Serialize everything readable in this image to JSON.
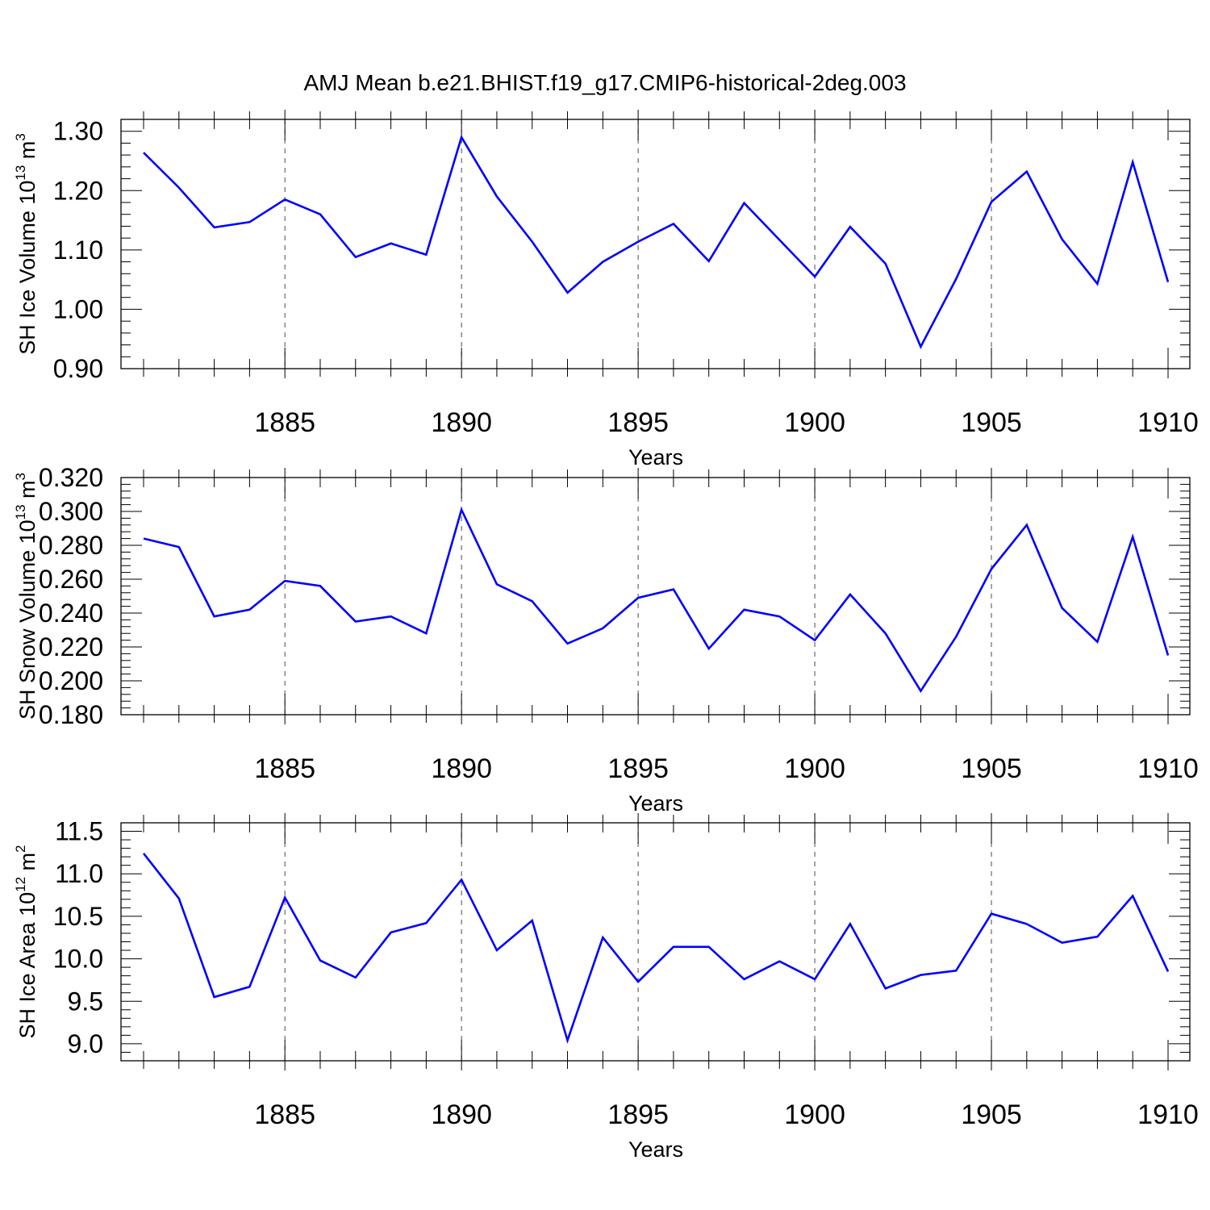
{
  "title": "AMJ Mean b.e21.BHIST.f19_g17.CMIP6-historical-2deg.003",
  "colors": {
    "line": "#0000ff",
    "axis": "#000000",
    "grid": "#000000"
  },
  "chart_data": [
    {
      "type": "line",
      "ylabel": "SH Ice Volume 10",
      "ylabel_exp": "13",
      "ylabel_unit": " m",
      "ylabel_unit_exp": "3",
      "xlabel": "Years",
      "xlim": [
        1881,
        1910
      ],
      "ylim": [
        0.9,
        1.32
      ],
      "yticks": [
        0.9,
        1.0,
        1.1,
        1.2,
        1.3
      ],
      "ytick_labels": [
        "0.90",
        "1.00",
        "1.10",
        "1.20",
        "1.30"
      ],
      "xticks": [
        1885,
        1890,
        1895,
        1900,
        1905,
        1910
      ],
      "xtick_labels": [
        "1885",
        "1890",
        "1895",
        "1900",
        "1905",
        "1910"
      ],
      "grid": "vertical dashed at major x ticks",
      "x": [
        1881,
        1882,
        1883,
        1884,
        1885,
        1886,
        1887,
        1888,
        1889,
        1890,
        1891,
        1892,
        1893,
        1894,
        1895,
        1896,
        1897,
        1898,
        1899,
        1900,
        1901,
        1902,
        1903,
        1904,
        1905,
        1906,
        1907,
        1908,
        1909,
        1910
      ],
      "series": [
        {
          "values": [
            1.264,
            1.205,
            1.138,
            1.147,
            1.185,
            1.16,
            1.088,
            1.111,
            1.092,
            1.29,
            1.19,
            1.114,
            1.028,
            1.08,
            1.114,
            1.144,
            1.081,
            1.179,
            1.117,
            1.055,
            1.139,
            1.077,
            0.937,
            1.051,
            1.181,
            1.232,
            1.118,
            1.043,
            1.248,
            1.046
          ]
        }
      ]
    },
    {
      "type": "line",
      "ylabel": "SH Snow Volume 10",
      "ylabel_exp": "13",
      "ylabel_unit": " m",
      "ylabel_unit_exp": "3",
      "xlabel": "Years",
      "xlim": [
        1881,
        1910
      ],
      "ylim": [
        0.18,
        0.32
      ],
      "yticks": [
        0.18,
        0.2,
        0.22,
        0.24,
        0.26,
        0.28,
        0.3,
        0.32
      ],
      "ytick_labels": [
        "0.180",
        "0.200",
        "0.220",
        "0.240",
        "0.260",
        "0.280",
        "0.300",
        "0.320"
      ],
      "xticks": [
        1885,
        1890,
        1895,
        1900,
        1905,
        1910
      ],
      "xtick_labels": [
        "1885",
        "1890",
        "1895",
        "1900",
        "1905",
        "1910"
      ],
      "grid": "vertical dashed at major x ticks",
      "x": [
        1881,
        1882,
        1883,
        1884,
        1885,
        1886,
        1887,
        1888,
        1889,
        1890,
        1891,
        1892,
        1893,
        1894,
        1895,
        1896,
        1897,
        1898,
        1899,
        1900,
        1901,
        1902,
        1903,
        1904,
        1905,
        1906,
        1907,
        1908,
        1909,
        1910
      ],
      "series": [
        {
          "values": [
            0.284,
            0.279,
            0.238,
            0.242,
            0.259,
            0.256,
            0.235,
            0.238,
            0.228,
            0.301,
            0.257,
            0.247,
            0.222,
            0.231,
            0.249,
            0.254,
            0.219,
            0.242,
            0.238,
            0.224,
            0.251,
            0.228,
            0.194,
            0.226,
            0.266,
            0.292,
            0.243,
            0.223,
            0.285,
            0.215
          ]
        }
      ]
    },
    {
      "type": "line",
      "ylabel": "SH Ice Area 10",
      "ylabel_exp": "12",
      "ylabel_unit": " m",
      "ylabel_unit_exp": "2",
      "xlabel": "Years",
      "xlim": [
        1881,
        1910
      ],
      "ylim": [
        8.8,
        11.6
      ],
      "yticks": [
        9.0,
        9.5,
        10.0,
        10.5,
        11.0,
        11.5
      ],
      "ytick_labels": [
        "9.0",
        "9.5",
        "10.0",
        "10.5",
        "11.0",
        "11.5"
      ],
      "xticks": [
        1885,
        1890,
        1895,
        1900,
        1905,
        1910
      ],
      "xtick_labels": [
        "1885",
        "1890",
        "1895",
        "1900",
        "1905",
        "1910"
      ],
      "grid": "vertical dashed at major x ticks",
      "x": [
        1881,
        1882,
        1883,
        1884,
        1885,
        1886,
        1887,
        1888,
        1889,
        1890,
        1891,
        1892,
        1893,
        1894,
        1895,
        1896,
        1897,
        1898,
        1899,
        1900,
        1901,
        1902,
        1903,
        1904,
        1905,
        1906,
        1907,
        1908,
        1909,
        1910
      ],
      "series": [
        {
          "values": [
            11.24,
            10.71,
            9.55,
            9.67,
            10.72,
            9.98,
            9.78,
            10.31,
            10.42,
            10.93,
            10.1,
            10.45,
            9.04,
            10.25,
            9.73,
            10.14,
            10.14,
            9.76,
            9.97,
            9.76,
            10.41,
            9.65,
            9.81,
            9.86,
            10.53,
            10.41,
            10.19,
            10.26,
            10.74,
            9.85
          ]
        }
      ]
    }
  ]
}
